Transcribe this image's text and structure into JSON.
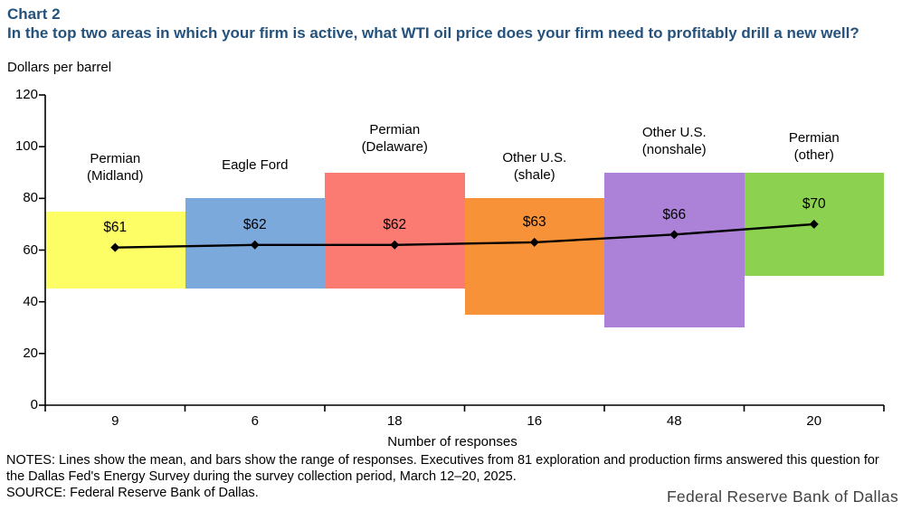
{
  "header": {
    "chart_number": "Chart 2",
    "title": "In the top two areas in which your firm is active, what WTI oil price does your firm need to profitably drill a new well?",
    "units_label": "Dollars per barrel"
  },
  "colors": {
    "title_accent": "#24527D",
    "axis": "#000000"
  },
  "chart_data": {
    "type": "bar",
    "subtype": "floating-range-bars-with-mean-line",
    "title": "In the top two areas in which your firm is active, what WTI oil price does your firm need to profitably drill a new well?",
    "categories": [
      "Permian (Midland)",
      "Eagle Ford",
      "Permian (Delaware)",
      "Other U.S. (shale)",
      "Other U.S. (nonshale)",
      "Permian (other)"
    ],
    "category_label_lines": [
      [
        "Permian",
        "(Midland)"
      ],
      [
        "Eagle Ford"
      ],
      [
        "Permian",
        "(Delaware)"
      ],
      [
        "Other U.S.",
        "(shale)"
      ],
      [
        "Other U.S.",
        "(nonshale)"
      ],
      [
        "Permian",
        "(other)"
      ]
    ],
    "responses": [
      9,
      6,
      18,
      16,
      48,
      20
    ],
    "series": [
      {
        "name": "Range of responses",
        "type": "range-bar",
        "low": [
          45,
          45,
          45,
          35,
          30,
          50
        ],
        "high": [
          75,
          80,
          90,
          80,
          90,
          90
        ],
        "colors": [
          "#FDFD66",
          "#7CA9DC",
          "#FB7A72",
          "#F89239",
          "#AC82D8",
          "#8CD150"
        ]
      },
      {
        "name": "Mean",
        "type": "line",
        "values": [
          61,
          62,
          62,
          63,
          66,
          70
        ],
        "labels": [
          "$61",
          "$62",
          "$62",
          "$63",
          "$66",
          "$70"
        ],
        "color": "#000000",
        "marker": "diamond"
      }
    ],
    "xlabel": "Number of responses",
    "ylabel": "Dollars per barrel",
    "ylim": [
      0,
      120
    ],
    "ytick_interval": 20,
    "grid": false,
    "legend": "none"
  },
  "footer": {
    "notes": "NOTES: Lines show the mean, and bars show the range of responses. Executives from 81 exploration and production firms answered this question for the Dallas Fed's Energy Survey during the survey collection period, March 12–20, 2025.",
    "source": "SOURCE: Federal Reserve Bank of Dallas.",
    "branding": "Federal Reserve Bank of Dallas"
  }
}
